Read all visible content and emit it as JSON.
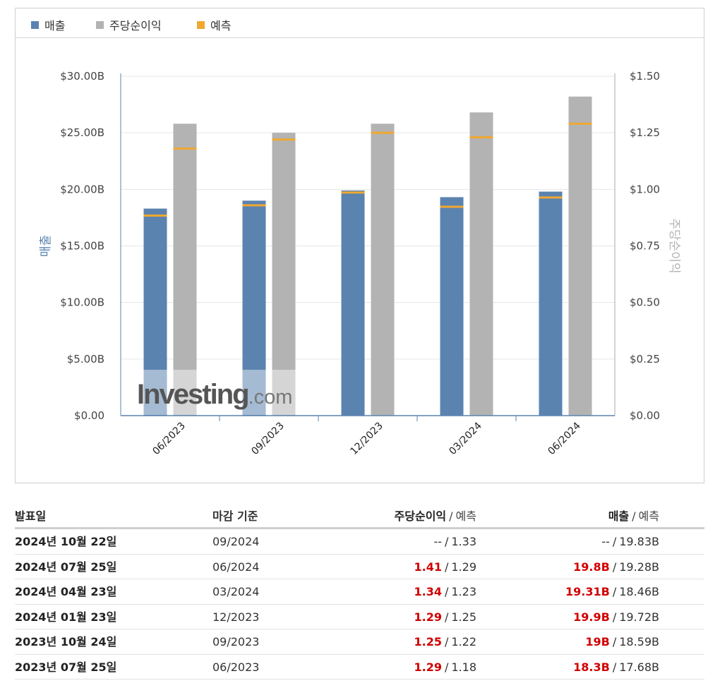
{
  "legend": {
    "revenue": "매출",
    "eps": "주당순이익",
    "forecast": "예측"
  },
  "colors": {
    "revenue": "#5b83b0",
    "eps": "#b3b3b3",
    "forecast": "#f0a830",
    "revenue_axis_label": "#5b83b0",
    "eps_axis_label": "#b3b3b3"
  },
  "watermark": {
    "brand": "Investing",
    "suffix": ".com"
  },
  "chart_data": {
    "type": "bar",
    "categories": [
      "06/2023",
      "09/2023",
      "12/2023",
      "03/2024",
      "06/2024"
    ],
    "series": [
      {
        "name": "매출",
        "axis": "left",
        "values": [
          18.3,
          19.0,
          19.9,
          19.31,
          19.8
        ],
        "forecast": [
          17.68,
          18.59,
          19.72,
          18.46,
          19.28
        ]
      },
      {
        "name": "주당순이익",
        "axis": "right",
        "values": [
          1.29,
          1.25,
          1.29,
          1.34,
          1.41
        ],
        "forecast": [
          1.18,
          1.22,
          1.25,
          1.23,
          1.29
        ]
      }
    ],
    "y_left": {
      "label": "매출",
      "ylim": [
        0,
        30
      ],
      "ticks": [
        "$0.00",
        "$5.00B",
        "$10.00B",
        "$15.00B",
        "$20.00B",
        "$25.00B",
        "$30.00B"
      ]
    },
    "y_right": {
      "label": "주당순이익",
      "ylim": [
        0,
        1.5
      ],
      "ticks": [
        "$0.00",
        "$0.25",
        "$0.50",
        "$0.75",
        "$1.00",
        "$1.25",
        "$1.50"
      ]
    },
    "grid": true,
    "legend_position": "top-left"
  },
  "table": {
    "headers": {
      "date": "발표일",
      "period": "마감 기준",
      "eps": "주당순이익",
      "eps_sub": "예측",
      "revenue": "매출",
      "revenue_sub": "예측",
      "slash": "/"
    },
    "rows": [
      {
        "date": "2024년 10월 22일",
        "period": "09/2024",
        "eps": "--",
        "eps_forecast": "1.33",
        "revenue": "--",
        "revenue_forecast": "19.83B",
        "highlight": false
      },
      {
        "date": "2024년 07월 25일",
        "period": "06/2024",
        "eps": "1.41",
        "eps_forecast": "1.29",
        "revenue": "19.8B",
        "revenue_forecast": "19.28B",
        "highlight": true
      },
      {
        "date": "2024년 04월 23일",
        "period": "03/2024",
        "eps": "1.34",
        "eps_forecast": "1.23",
        "revenue": "19.31B",
        "revenue_forecast": "18.46B",
        "highlight": true
      },
      {
        "date": "2024년 01월 23일",
        "period": "12/2023",
        "eps": "1.29",
        "eps_forecast": "1.25",
        "revenue": "19.9B",
        "revenue_forecast": "19.72B",
        "highlight": true
      },
      {
        "date": "2023년 10월 24일",
        "period": "09/2023",
        "eps": "1.25",
        "eps_forecast": "1.22",
        "revenue": "19B",
        "revenue_forecast": "18.59B",
        "highlight": true
      },
      {
        "date": "2023년 07월 25일",
        "period": "06/2023",
        "eps": "1.29",
        "eps_forecast": "1.18",
        "revenue": "18.3B",
        "revenue_forecast": "17.68B",
        "highlight": true
      }
    ]
  }
}
